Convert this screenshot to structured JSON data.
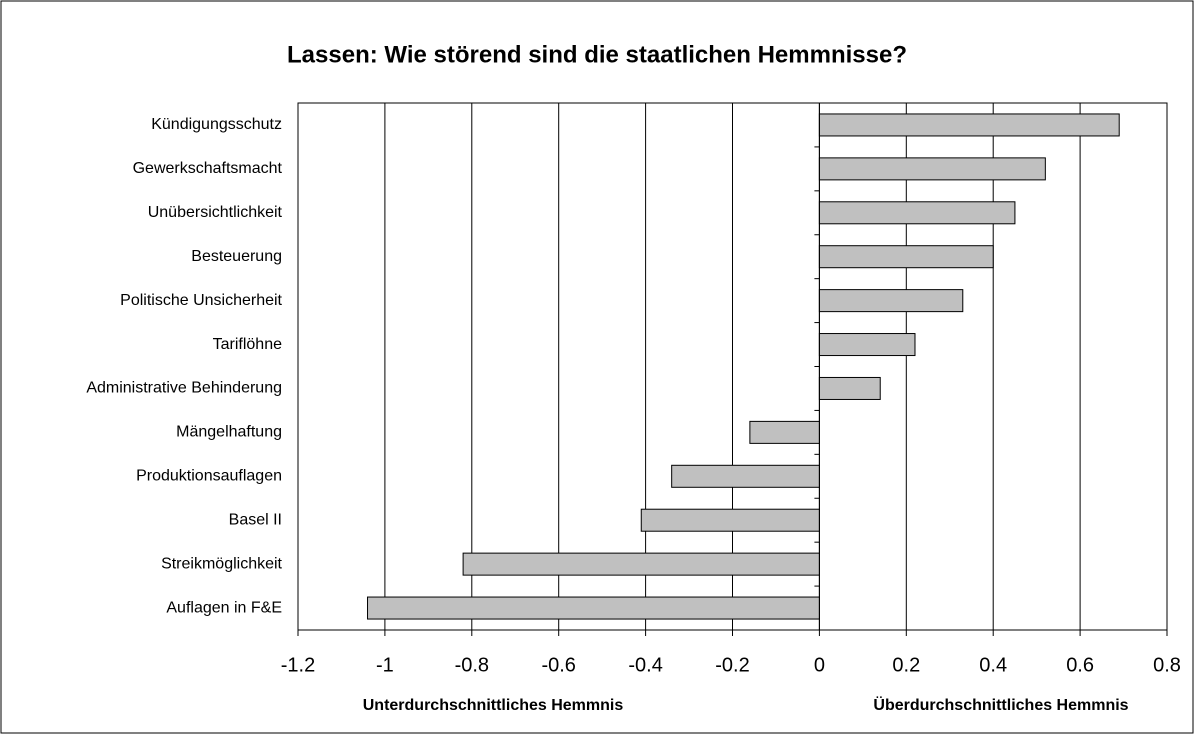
{
  "chart_data": {
    "type": "barh",
    "title": "Lassen: Wie störend sind die staatlichen Hemmnisse?",
    "categories": [
      "Kündigungsschutz",
      "Gewerkschaftsmacht",
      "Unübersichtlichkeit",
      "Besteuerung",
      "Politische Unsicherheit",
      "Tariflöhne",
      "Administrative Behinderung",
      "Mängelhaftung",
      "Produktionsauflagen",
      "Basel II",
      "Streikmöglichkeit",
      "Auflagen in F&E"
    ],
    "values": [
      0.69,
      0.52,
      0.45,
      0.4,
      0.33,
      0.22,
      0.14,
      -0.16,
      -0.34,
      -0.41,
      -0.82,
      -1.04
    ],
    "color": "#c0c0c0",
    "xlim": [
      -1.2,
      0.8
    ],
    "xticks": [
      -1.2,
      -1,
      -0.8,
      -0.6,
      -0.4,
      -0.2,
      0,
      0.2,
      0.4,
      0.6,
      0.8
    ],
    "grid": true,
    "annotations": [
      "Unterdurchschnittliches Hemmnis",
      "Überdurchschnittliches Hemmnis"
    ]
  }
}
